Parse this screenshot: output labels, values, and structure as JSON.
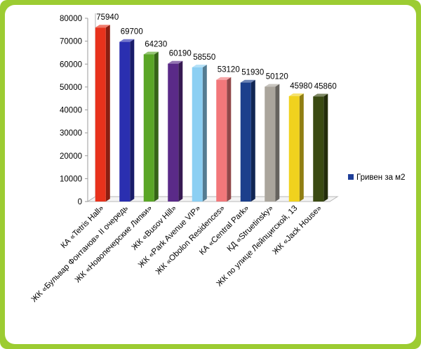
{
  "chart_data": {
    "type": "bar",
    "categories": [
      "КА «Tetris Hall»",
      "ЖК «Бульвар Фонтанов» II очередь",
      "ЖК «Новопечерские Липки»",
      "ЖК «Busov Hill»",
      "ЖК «Park Avenue VIP»",
      "ЖК «Obolon Residences»",
      "КА «Central Park»",
      "КД «Struetinsky»",
      "ЖК по улице Лейпцигской, 13",
      "ЖК «Jack House»"
    ],
    "series": [
      {
        "name": "Гривен за м2",
        "values": [
          75940,
          69700,
          64230,
          60190,
          58550,
          53120,
          51930,
          50120,
          45980,
          45860
        ]
      }
    ],
    "data_labels": [
      "75940",
      "69700",
      "64230",
      "60190",
      "58550",
      "53120",
      "51930",
      "50120",
      "45980",
      "45860"
    ],
    "colors": [
      "#e8321c",
      "#2a2fb0",
      "#5aa626",
      "#5a2a88",
      "#8ccff3",
      "#f2777a",
      "#1c3f8c",
      "#aaa59c",
      "#f0d21e",
      "#3a4a12"
    ],
    "legend_color": "#1f3f99",
    "yticks": [
      "0",
      "10000",
      "20000",
      "30000",
      "40000",
      "50000",
      "60000",
      "70000",
      "80000"
    ],
    "ylim": [
      0,
      80000
    ],
    "grid": false,
    "legend_position": "right",
    "title": "",
    "xlabel": "",
    "ylabel": ""
  }
}
